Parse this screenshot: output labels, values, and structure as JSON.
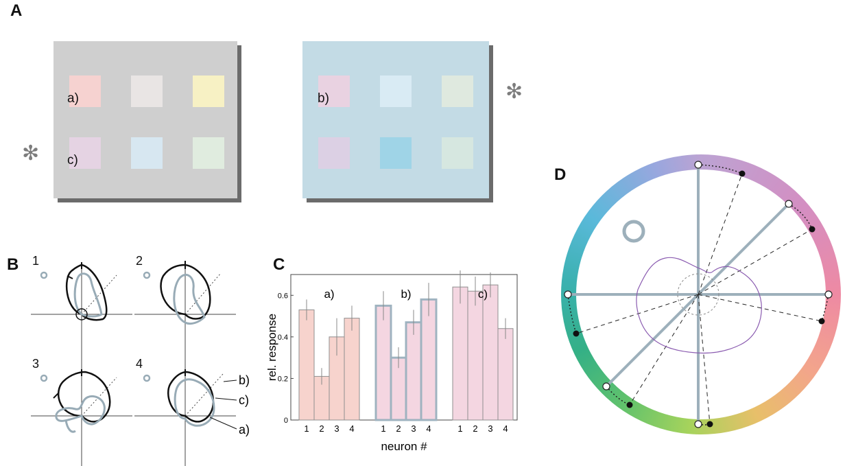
{
  "panels": {
    "A": "A",
    "B": "B",
    "C": "C",
    "D": "D"
  },
  "panelA": {
    "left_label_a": "a)",
    "left_label_c": "c)",
    "right_label_b": "b)",
    "asterisk": "✻",
    "colors": {
      "left_bg": "#cfcfcf",
      "right_bg": "#c3dbe5",
      "left_swatches": [
        "#f6d2d0",
        "#e9e5e4",
        "#f7f1c4",
        "#e5d3e3",
        "#d7e7f1",
        "#e0ecdf"
      ],
      "right_swatches": [
        "#e9d2e1",
        "#d9ebf4",
        "#dfe9df",
        "#dcd0e4",
        "#9fd4e7",
        "#d6e7e0"
      ]
    }
  },
  "panelB": {
    "plot_numbers": [
      "1",
      "2",
      "3",
      "4"
    ],
    "annotations": [
      "b)",
      "c)",
      "a)"
    ]
  },
  "chart_data": {
    "type": "bar",
    "ylabel": "rel. response",
    "xlabel": "neuron #",
    "ylim": [
      0,
      0.7
    ],
    "yticks": [
      "0",
      "0.2",
      "0.4",
      "0.6"
    ],
    "categories": [
      "1",
      "2",
      "3",
      "4"
    ],
    "groups": [
      {
        "name": "a)",
        "values": [
          0.53,
          0.21,
          0.4,
          0.49
        ],
        "errors": [
          0.05,
          0.04,
          0.09,
          0.06
        ],
        "color": "#f7d3cd"
      },
      {
        "name": "b)",
        "values": [
          0.55,
          0.3,
          0.47,
          0.58
        ],
        "errors": [
          0.07,
          0.05,
          0.06,
          0.08
        ],
        "color": "#f4d6e1"
      },
      {
        "name": "c)",
        "values": [
          0.64,
          0.62,
          0.65,
          0.44
        ],
        "errors": [
          0.08,
          0.07,
          0.06,
          0.05
        ],
        "color": "#f4d6e1"
      }
    ]
  }
}
